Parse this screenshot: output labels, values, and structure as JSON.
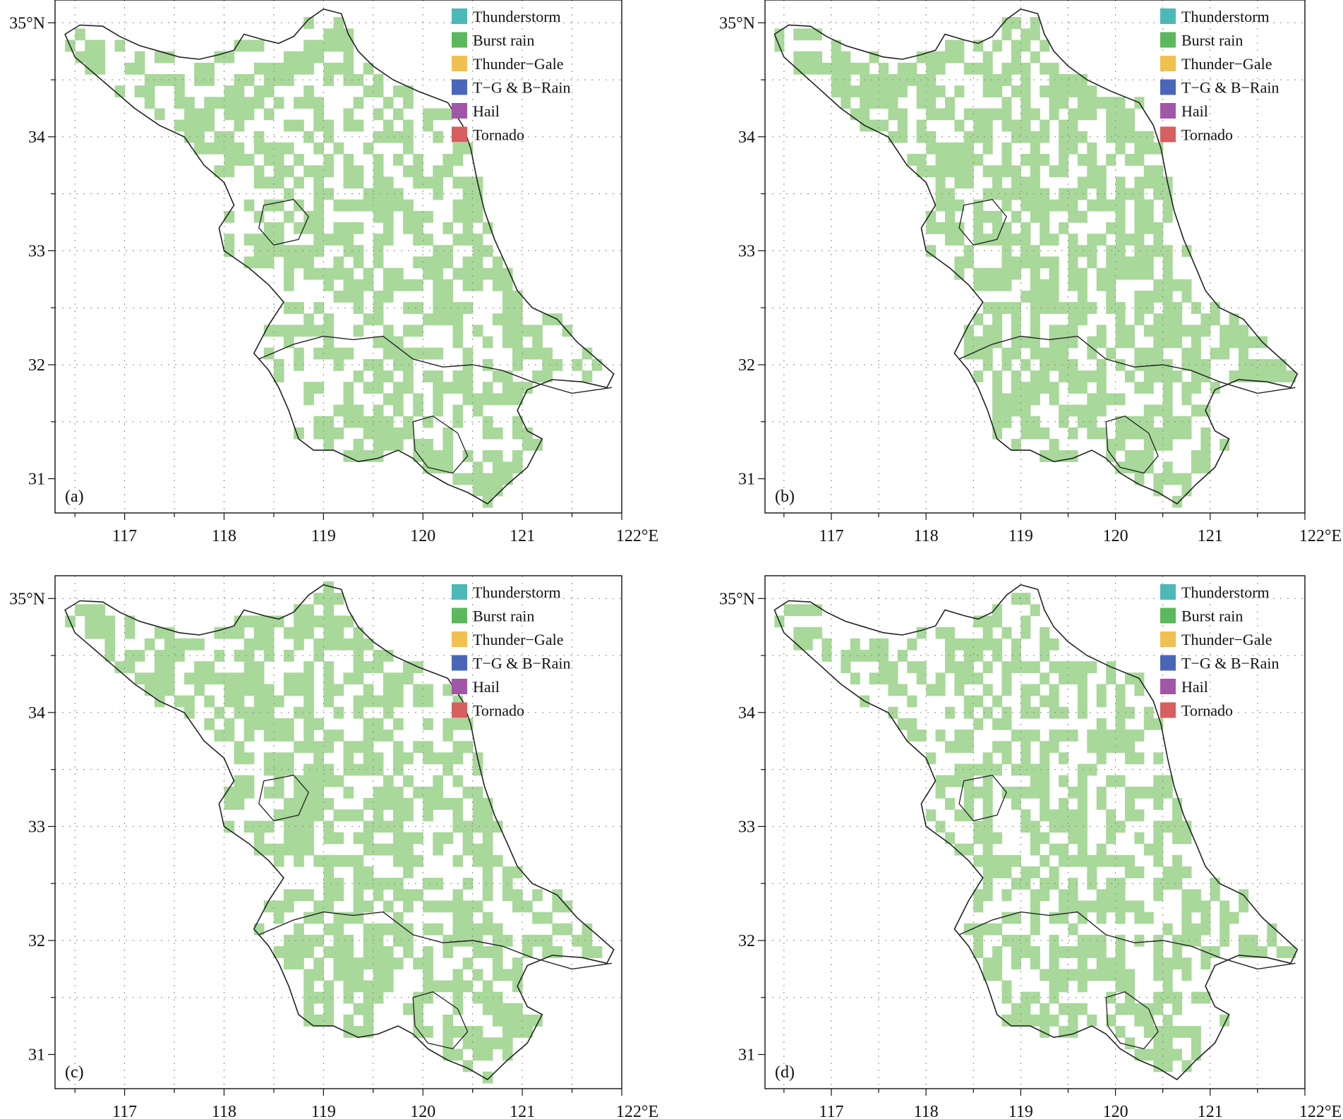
{
  "figure": {
    "panels": [
      {
        "label": "(a)",
        "variant": 0
      },
      {
        "label": "(b)",
        "variant": 1
      },
      {
        "label": "(c)",
        "variant": 2
      },
      {
        "label": "(d)",
        "variant": 3
      }
    ],
    "legend": [
      {
        "label": "Thunderstorm",
        "color": "#4db8b8"
      },
      {
        "label": "Burst rain",
        "color": "#5cb85c"
      },
      {
        "label": "Thunder−Gale",
        "color": "#f0c050"
      },
      {
        "label": "T−G & B−Rain",
        "color": "#4a66b8"
      },
      {
        "label": "Hail",
        "color": "#a057a8"
      },
      {
        "label": "Tornado",
        "color": "#d65f5f"
      }
    ],
    "lon_ticks": [
      "117",
      "118",
      "119",
      "120",
      "121",
      "122°E"
    ],
    "lat_ticks": [
      "35°N",
      "34",
      "33",
      "32",
      "31"
    ],
    "colors": {
      "burst_light": "#a8d89a",
      "burst_dark": "#6cc063",
      "thunder_light": "#a0d8e4",
      "thunder_mid": "#5cc0c4",
      "thunder_dark": "#35a3a6",
      "boundary": "#222222",
      "grid": "#888888"
    }
  }
}
